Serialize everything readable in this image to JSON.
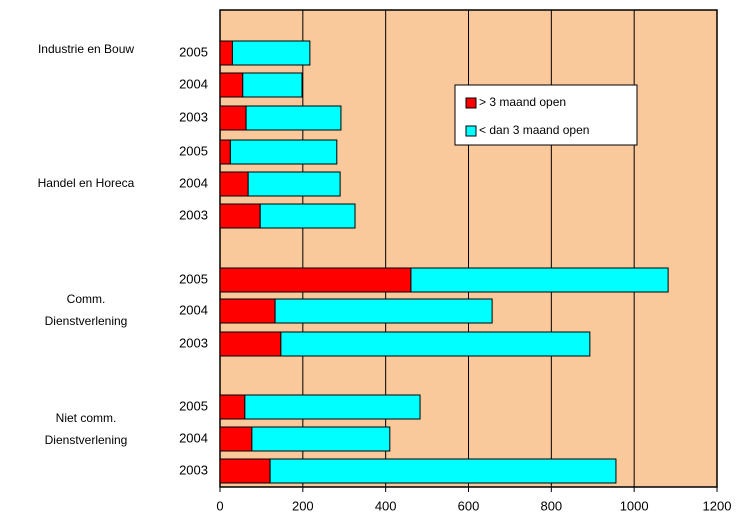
{
  "chart_data": {
    "type": "stacked-barh",
    "categories": [
      "2005",
      "2004",
      "2003",
      "2005",
      "2004",
      "2003",
      "2005",
      "2004",
      "2003",
      "2005",
      "2004",
      "2003"
    ],
    "groups": [
      {
        "lines": [
          "Industrie en Bouw"
        ]
      },
      {
        "lines": [
          "Handel en Horeca"
        ]
      },
      {
        "lines": [
          "Comm.",
          "Dienstverlening"
        ]
      },
      {
        "lines": [
          "Niet comm.",
          "Dienstverlening"
        ]
      }
    ],
    "series": [
      {
        "name": "> 3 maand open",
        "color": "#ff0000",
        "values": [
          30,
          55,
          63,
          25,
          68,
          97,
          461,
          133,
          147,
          60,
          77,
          121
        ]
      },
      {
        "name": "< dan 3 maand open",
        "color": "#00ffff",
        "values": [
          187,
          143,
          229,
          257,
          222,
          229,
          621,
          524,
          746,
          423,
          333,
          835
        ]
      }
    ],
    "xlim": [
      0,
      1200
    ],
    "xticks": [
      0,
      200,
      400,
      600,
      800,
      1000,
      1200
    ],
    "grid": true,
    "plot_background": "#f9c89b"
  }
}
